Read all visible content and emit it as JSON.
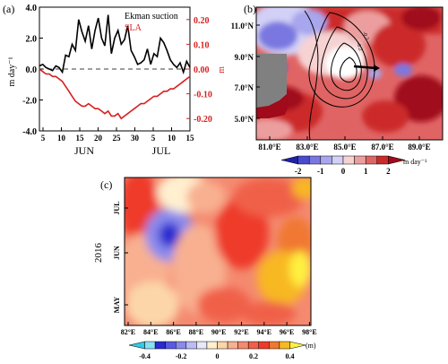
{
  "figure": {
    "panel_labels": [
      "(a)",
      "(b)",
      "(c)"
    ]
  },
  "colors": {
    "ekman": "#000000",
    "sla": "#d62020",
    "land": "#808080"
  },
  "chart_data": [
    {
      "panel": "(a)",
      "type": "line",
      "legend": [
        "Ekman suction",
        "SLA"
      ],
      "legend_placement": "top-right",
      "x_ticks": [
        "5",
        "10",
        "15",
        "20",
        "25",
        "30",
        "5",
        "10",
        "15"
      ],
      "x_month_labels": [
        "JUN",
        "JUL"
      ],
      "y_left": {
        "label": "m day⁻¹",
        "ticks": [
          "-4.0",
          "-2.0",
          "0.0",
          "2.0",
          "4.0"
        ],
        "ylim": [
          -4.0,
          4.0
        ]
      },
      "y_right": {
        "label": "m",
        "ticks": [
          "-0.20",
          "-0.10",
          "0.00",
          "0.10",
          "0.20"
        ],
        "ylim": [
          -0.25,
          0.25
        ]
      },
      "zero_line": "dashed",
      "x": [
        0,
        1,
        2,
        3,
        4,
        5,
        6,
        7,
        8,
        9,
        10,
        11,
        12,
        13,
        14,
        15,
        16,
        17,
        18,
        19,
        20,
        21,
        22,
        23,
        24,
        25,
        26,
        27,
        28,
        29,
        30,
        31,
        32,
        33,
        34,
        35,
        36,
        37,
        38,
        39,
        40,
        41,
        42,
        43,
        44,
        45,
        46
      ],
      "series": [
        {
          "name": "Ekman suction",
          "color": "#000000",
          "axis": "left",
          "values": [
            0.2,
            0.3,
            0.1,
            0.0,
            -0.1,
            0.2,
            0.1,
            -0.2,
            0.9,
            0.8,
            1.6,
            1.2,
            3.2,
            2.4,
            1.8,
            2.8,
            1.3,
            2.5,
            3.3,
            2.0,
            1.5,
            3.5,
            1.0,
            2.0,
            2.5,
            1.6,
            1.9,
            2.8,
            1.2,
            0.8,
            0.3,
            0.4,
            0.6,
            1.3,
            0.3,
            1.0,
            0.8,
            2.0,
            1.7,
            1.2,
            0.6,
            0.3,
            0.1,
            0.4,
            -0.2,
            0.5,
            0.1
          ]
        },
        {
          "name": "SLA",
          "color": "#d62020",
          "axis": "right",
          "values": [
            0.0,
            -0.01,
            -0.02,
            -0.02,
            -0.03,
            -0.03,
            -0.04,
            -0.05,
            -0.07,
            -0.09,
            -0.11,
            -0.13,
            -0.14,
            -0.15,
            -0.15,
            -0.14,
            -0.15,
            -0.16,
            -0.16,
            -0.17,
            -0.18,
            -0.17,
            -0.19,
            -0.19,
            -0.18,
            -0.2,
            -0.19,
            -0.18,
            -0.17,
            -0.16,
            -0.15,
            -0.14,
            -0.14,
            -0.13,
            -0.12,
            -0.11,
            -0.11,
            -0.1,
            -0.09,
            -0.09,
            -0.08,
            -0.08,
            -0.07,
            -0.06,
            -0.05,
            -0.04,
            -0.03
          ]
        }
      ]
    },
    {
      "panel": "(b)",
      "type": "heatmap",
      "lat_ticks": [
        "5.0°N",
        "7.0°N",
        "9.0°N",
        "11.0°N"
      ],
      "lon_ticks": [
        "81.0°E",
        "83.0°E",
        "85.0°E",
        "87.0°E",
        "89.0°E"
      ],
      "colorbar": {
        "ticks": [
          "-2",
          "-1",
          "0",
          "1",
          "2"
        ],
        "unit": "m day⁻¹",
        "colors": [
          "#2020a8",
          "#4a4ad0",
          "#7a78e0",
          "#a8a6ec",
          "#d2d0f6",
          "#f6d2d2",
          "#ec9e9e",
          "#e06464",
          "#cc2a2a",
          "#a00a1a"
        ]
      },
      "contour_labels": [
        "-0.2",
        "-0.2"
      ]
    },
    {
      "panel": "(c)",
      "type": "heatmap",
      "ylabel": "2016",
      "y_ticks": [
        "MAY",
        "JUN",
        "JUL"
      ],
      "x_ticks": [
        "82°E",
        "84°E",
        "86°E",
        "88°E",
        "90°E",
        "92°E",
        "94°E",
        "96°E",
        "98°E"
      ],
      "colorbar": {
        "ticks": [
          "-0.4",
          "-0.2",
          "0",
          "0.2",
          "0.4"
        ],
        "unit": "(m)",
        "colors": [
          "#33c8e8",
          "#88e0f4",
          "#2a2ad0",
          "#5a5ae0",
          "#8a8aec",
          "#bcbcf4",
          "#e8e8fa",
          "#fff0d0",
          "#fcd6a8",
          "#f8b090",
          "#f48a70",
          "#f06048",
          "#ee3a2a",
          "#f07830",
          "#f8b820",
          "#fff040"
        ]
      }
    }
  ]
}
